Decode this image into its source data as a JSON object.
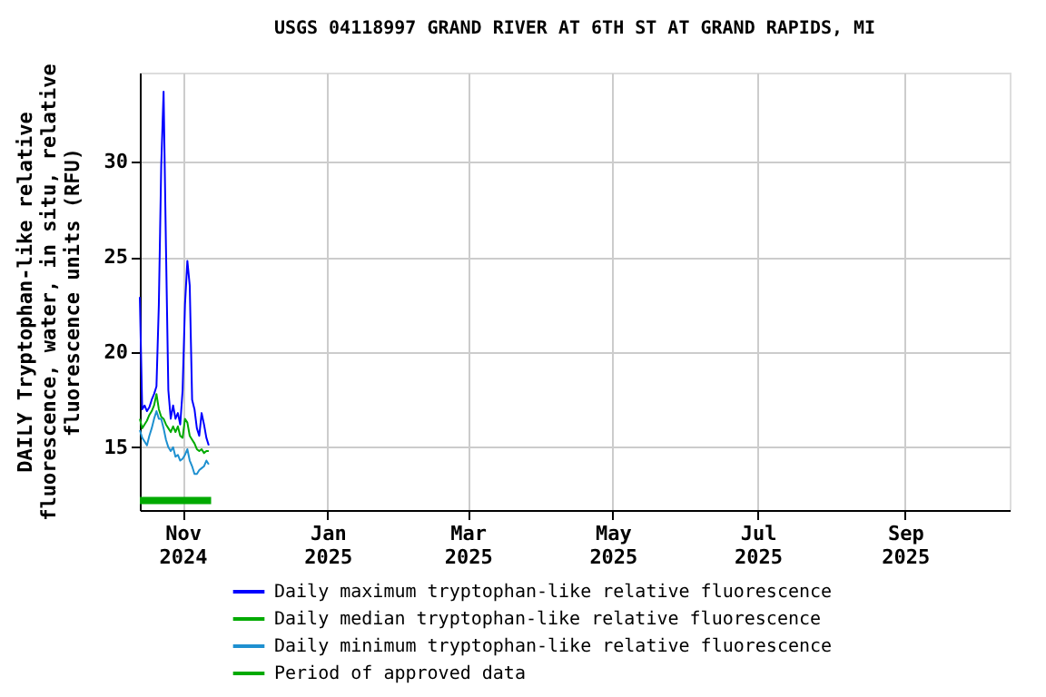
{
  "chart_data": {
    "type": "line",
    "title": "USGS 04118997 GRAND RIVER AT 6TH ST AT GRAND RAPIDS, MI",
    "ylabel": "DAILY Tryptophan-like relative\nfluorescence, water, in situ, relative\nfluorescence units (RFU)",
    "x": [
      "2024-10-14",
      "2024-10-15",
      "2024-10-16",
      "2024-10-17",
      "2024-10-18",
      "2024-10-19",
      "2024-10-20",
      "2024-10-21",
      "2024-10-22",
      "2024-10-23",
      "2024-10-24",
      "2024-10-25",
      "2024-10-26",
      "2024-10-27",
      "2024-10-28",
      "2024-10-29",
      "2024-10-30",
      "2024-10-31",
      "2024-11-01",
      "2024-11-02",
      "2024-11-03",
      "2024-11-04",
      "2024-11-05",
      "2024-11-06",
      "2024-11-07",
      "2024-11-08",
      "2024-11-09",
      "2024-11-10",
      "2024-11-11",
      "2024-11-12"
    ],
    "series": [
      {
        "name": "Daily maximum tryptophan-like relative fluorescence",
        "color": "#0000ff",
        "values": [
          22.9,
          17.0,
          17.2,
          16.9,
          17.1,
          17.5,
          17.8,
          18.2,
          22.5,
          29.8,
          33.7,
          25.5,
          18.0,
          16.5,
          17.2,
          16.5,
          16.8,
          16.2,
          18.0,
          22.5,
          24.8,
          23.5,
          17.5,
          17.0,
          16.0,
          15.6,
          16.8,
          16.2,
          15.5,
          15.1
        ]
      },
      {
        "name": "Daily median tryptophan-like relative fluorescence",
        "color": "#00aa00",
        "values": [
          16.5,
          16.0,
          16.2,
          16.4,
          16.7,
          16.9,
          17.2,
          17.8,
          17.0,
          16.6,
          16.5,
          16.2,
          16.0,
          15.8,
          16.1,
          15.8,
          16.1,
          15.6,
          15.5,
          16.5,
          16.3,
          15.6,
          15.4,
          15.2,
          14.9,
          14.8,
          14.9,
          14.7,
          14.8,
          14.8
        ]
      },
      {
        "name": "Daily minimum tryptophan-like relative fluorescence",
        "color": "#1e90d0",
        "values": [
          15.9,
          15.5,
          15.3,
          15.1,
          15.6,
          16.0,
          16.5,
          16.9,
          16.5,
          16.5,
          16.0,
          15.4,
          15.0,
          14.8,
          15.0,
          14.5,
          14.6,
          14.3,
          14.4,
          14.6,
          14.9,
          14.3,
          14.0,
          13.6,
          13.6,
          13.8,
          13.9,
          14.0,
          14.3,
          14.1
        ]
      },
      {
        "name": "Period of approved data",
        "color": "#00aa00",
        "x": [
          "2024-10-14",
          "2024-11-13"
        ],
        "values": [
          12.2,
          12.2
        ]
      }
    ],
    "xlim": [
      "2024-10-14",
      "2025-10-15"
    ],
    "xticks": [
      {
        "value": "2024-11-01",
        "label": "Nov 2024"
      },
      {
        "value": "2025-01-01",
        "label": "Jan 2025"
      },
      {
        "value": "2025-03-01",
        "label": "Mar 2025"
      },
      {
        "value": "2025-05-01",
        "label": "May 2025"
      },
      {
        "value": "2025-07-01",
        "label": "Jul 2025"
      },
      {
        "value": "2025-09-01",
        "label": "Sep 2025"
      }
    ],
    "ylim": [
      11.7,
      34.7
    ],
    "yticks": [
      15,
      20,
      25,
      30
    ],
    "grid": true,
    "legend": "bottom"
  }
}
